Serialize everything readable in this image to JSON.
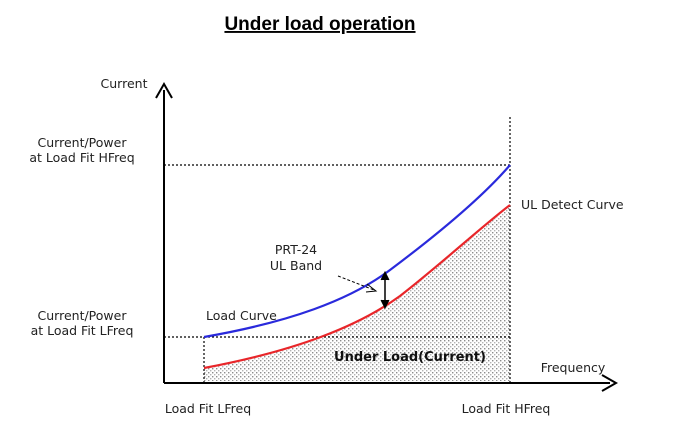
{
  "title": "Under load operation",
  "axes": {
    "y_label": "Current",
    "x_label": "Frequency",
    "y_tick_high": [
      "Current/Power",
      "at Load Fit HFreq"
    ],
    "y_tick_low": [
      "Current/Power",
      "at Load Fit LFreq"
    ],
    "x_tick_low": "Load Fit LFreq",
    "x_tick_high": "Load Fit HFreq"
  },
  "labels": {
    "load_curve": "Load Curve",
    "ul_detect_curve": "UL Detect Curve",
    "prt_band": [
      "PRT-24",
      "UL Band"
    ],
    "under_load_region": "Under Load(Current)"
  },
  "colors": {
    "load_curve": "#2a2adc",
    "ul_detect_curve": "#e8262a",
    "axis": "#000000",
    "region_fill": "#e6e6e6"
  }
}
